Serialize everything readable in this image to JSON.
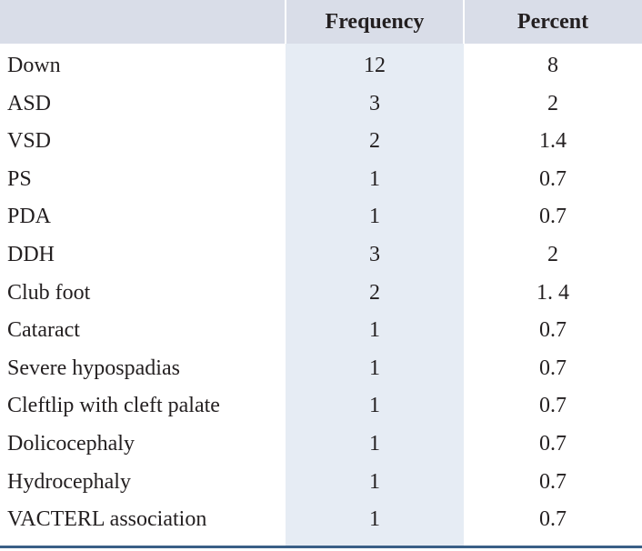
{
  "table": {
    "headers": [
      "",
      "Frequency",
      "Percent"
    ],
    "rows": [
      {
        "label": "Down",
        "frequency": "12",
        "percent": "8"
      },
      {
        "label": "ASD",
        "frequency": "3",
        "percent": "2"
      },
      {
        "label": "VSD",
        "frequency": "2",
        "percent": "1.4"
      },
      {
        "label": "PS",
        "frequency": "1",
        "percent": "0.7"
      },
      {
        "label": "PDA",
        "frequency": "1",
        "percent": "0.7"
      },
      {
        "label": "DDH",
        "frequency": "3",
        "percent": "2"
      },
      {
        "label": "Club foot",
        "frequency": "2",
        "percent": "1. 4"
      },
      {
        "label": "Cataract",
        "frequency": "1",
        "percent": "0.7"
      },
      {
        "label": "Severe hypospadias",
        "frequency": "1",
        "percent": "0.7"
      },
      {
        "label": "Cleftlip with cleft palate",
        "frequency": "1",
        "percent": "0.7"
      },
      {
        "label": "Dolicocephaly",
        "frequency": "1",
        "percent": "0.7"
      },
      {
        "label": "Hydrocephaly",
        "frequency": "1",
        "percent": "0.7"
      },
      {
        "label": "VACTERL association",
        "frequency": "1",
        "percent": "0.7"
      }
    ]
  }
}
